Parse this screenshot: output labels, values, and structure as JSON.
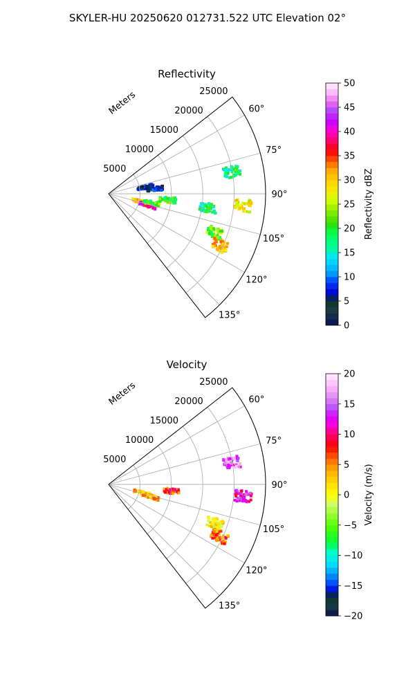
{
  "figure": {
    "title": "SKYLER-HU  20250620  012731.522 UTC Elevation 02°"
  },
  "chart_data": [
    {
      "type": "heatmap",
      "projection": "polar-sector",
      "title": "Reflectivity",
      "theta_range_deg": [
        52,
        142
      ],
      "range_axis_label": "Meters",
      "range_ticks": [
        5000,
        10000,
        15000,
        20000,
        25000
      ],
      "range_tick_labels": [
        "5000",
        "10000",
        "15000",
        "20000",
        "25000"
      ],
      "r_max": 25000,
      "azimuth_ticks": [
        60,
        75,
        90,
        105,
        120,
        135
      ],
      "azimuth_tick_labels": [
        "60°",
        "75°",
        "90°",
        "105°",
        "120°",
        "135°"
      ],
      "grid": true,
      "colorbar": {
        "label": "Reflectivity dBZ",
        "range": [
          0,
          50
        ],
        "ticks": [
          "0",
          "5",
          "10",
          "15",
          "20",
          "25",
          "30",
          "35",
          "40",
          "45",
          "50"
        ]
      },
      "features": [
        {
          "az": 104,
          "r": 5200,
          "val": 32
        },
        {
          "az": 106,
          "r": 6500,
          "val": 38
        },
        {
          "az": 102,
          "r": 7000,
          "val": 22
        },
        {
          "az": 96,
          "r": 9500,
          "val": 20
        },
        {
          "az": 80,
          "r": 6000,
          "val": 5
        },
        {
          "az": 84,
          "r": 7400,
          "val": 6
        },
        {
          "az": 95,
          "r": 21500,
          "val": 28
        },
        {
          "az": 80,
          "r": 20000,
          "val": 18
        },
        {
          "az": 110,
          "r": 18000,
          "val": 22
        },
        {
          "az": 115,
          "r": 19500,
          "val": 30
        },
        {
          "az": 98,
          "r": 16000,
          "val": 18
        }
      ]
    },
    {
      "type": "heatmap",
      "projection": "polar-sector",
      "title": "Velocity",
      "theta_range_deg": [
        52,
        142
      ],
      "range_axis_label": "Meters",
      "range_ticks": [
        5000,
        10000,
        15000,
        20000,
        25000
      ],
      "range_tick_labels": [
        "5000",
        "10000",
        "15000",
        "20000",
        "25000"
      ],
      "r_max": 25000,
      "azimuth_ticks": [
        60,
        75,
        90,
        105,
        120,
        135
      ],
      "azimuth_tick_labels": [
        "60°",
        "75°",
        "90°",
        "105°",
        "120°",
        "135°"
      ],
      "grid": true,
      "colorbar": {
        "label": "Velocity (m/s)",
        "range": [
          -20,
          20
        ],
        "ticks": [
          "−20",
          "−15",
          "−10",
          "−5",
          "0",
          "5",
          "10",
          "15",
          "20"
        ]
      },
      "features": [
        {
          "az": 104,
          "r": 5500,
          "val": 3
        },
        {
          "az": 106,
          "r": 7000,
          "val": 4
        },
        {
          "az": 96,
          "r": 10000,
          "val": 7
        },
        {
          "az": 95,
          "r": 21500,
          "val": 12
        },
        {
          "az": 80,
          "r": 20000,
          "val": 15
        },
        {
          "az": 110,
          "r": 18000,
          "val": 1
        },
        {
          "az": 115,
          "r": 19500,
          "val": 6
        }
      ]
    }
  ]
}
